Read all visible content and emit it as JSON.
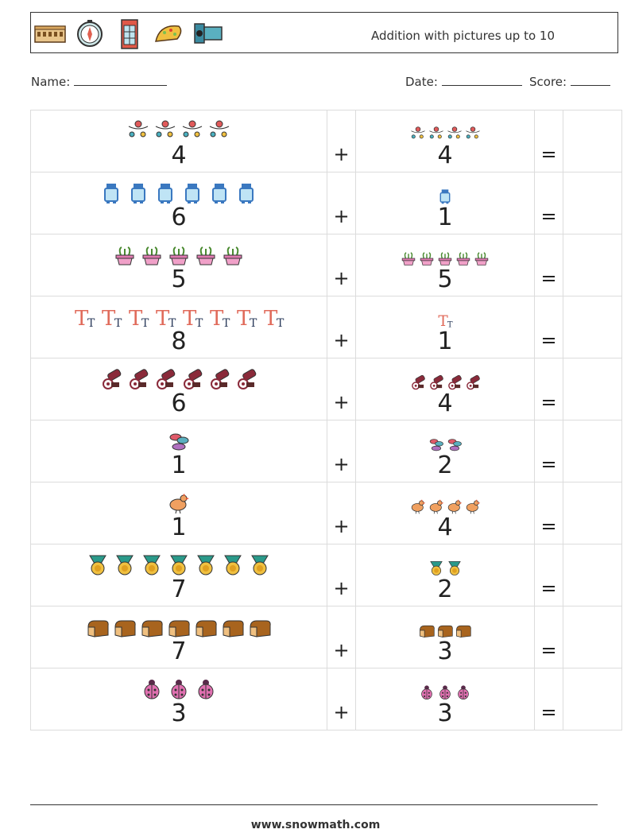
{
  "header": {
    "title": "Addition with pictures up to 10",
    "icons": [
      "colosseum-icon",
      "compass-icon",
      "phone-booth-icon",
      "taco-icon",
      "video-camera-icon"
    ]
  },
  "info": {
    "name_label": "Name:",
    "date_label": "Date:",
    "score_label": "Score:"
  },
  "problems": [
    {
      "a": "4",
      "b": "4",
      "icon": "ornament-garland",
      "plus": "+",
      "equals": "="
    },
    {
      "a": "6",
      "b": "1",
      "icon": "milk-bottle",
      "plus": "+",
      "equals": "="
    },
    {
      "a": "5",
      "b": "5",
      "icon": "seedling-planter",
      "plus": "+",
      "equals": "="
    },
    {
      "a": "8",
      "b": "1",
      "icon": "letter-t",
      "plus": "+",
      "equals": "="
    },
    {
      "a": "6",
      "b": "4",
      "icon": "cannon",
      "plus": "+",
      "equals": "="
    },
    {
      "a": "1",
      "b": "2",
      "icon": "macarons",
      "plus": "+",
      "equals": "="
    },
    {
      "a": "1",
      "b": "4",
      "icon": "chicken",
      "plus": "+",
      "equals": "="
    },
    {
      "a": "7",
      "b": "2",
      "icon": "medal",
      "plus": "+",
      "equals": "="
    },
    {
      "a": "7",
      "b": "3",
      "icon": "bread-loaf",
      "plus": "+",
      "equals": "="
    },
    {
      "a": "3",
      "b": "3",
      "icon": "ladybug",
      "plus": "+",
      "equals": "="
    }
  ],
  "footer": {
    "url": "www.snowmath.com"
  }
}
